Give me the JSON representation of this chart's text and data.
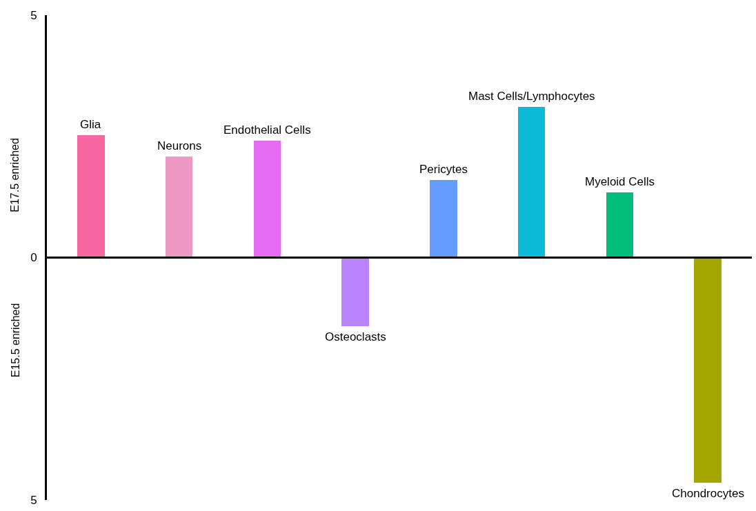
{
  "chart_data": {
    "type": "bar",
    "categories": [
      "Glia",
      "Neurons",
      "Endothelial Cells",
      "Osteoclasts",
      "Pericytes",
      "Mast Cells/Lymphocytes",
      "Myeloid Cells",
      "Chondrocytes"
    ],
    "values": [
      2.52,
      2.09,
      2.41,
      -1.41,
      1.6,
      3.11,
      1.35,
      -4.65
    ],
    "colors": [
      "#f768a1",
      "#ee99c3",
      "#e46cf2",
      "#b983fb",
      "#639cfd",
      "#0dbbd9",
      "#03bd7d",
      "#a3a600"
    ],
    "ylim": [
      -5,
      5
    ],
    "yticks": [
      {
        "value": 5,
        "label": "5"
      },
      0,
      {
        "value": -5,
        "label": "5"
      }
    ],
    "annotations": [
      "E17.5 enriched",
      "E15.5 enriched"
    ],
    "ref_lines": [
      {
        "axis": "y",
        "value": 0,
        "color": "#000000",
        "line_style": "solid"
      }
    ],
    "tick_labels": "y"
  }
}
